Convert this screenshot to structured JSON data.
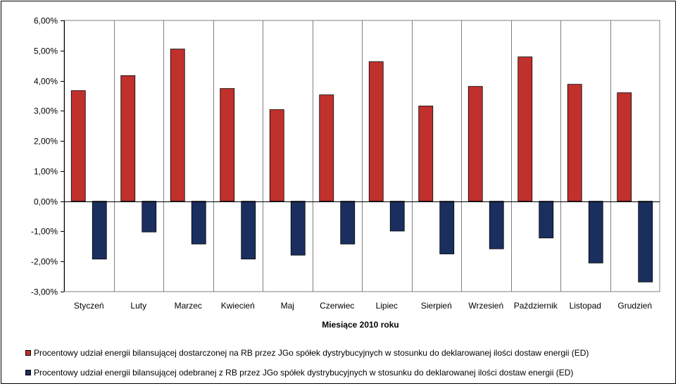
{
  "chart_data": {
    "type": "bar",
    "categories": [
      "Styczeń",
      "Luty",
      "Marzec",
      "Kwiecień",
      "Maj",
      "Czerwiec",
      "Lipiec",
      "Sierpień",
      "Wrzesień",
      "Październik",
      "Listopad",
      "Grudzień"
    ],
    "series": [
      {
        "name": "Procentowy udział energii bilansującej dostarczonej na RB przez JGo spółek dystrybucyjnych w stosunku do deklarowanej ilości dostaw energii (ED)",
        "color": "#c0302c",
        "values": [
          3.67,
          4.17,
          5.05,
          3.74,
          3.04,
          3.53,
          4.63,
          3.16,
          3.81,
          4.79,
          3.88,
          3.6
        ]
      },
      {
        "name": "Procentowy udział energii bilansującej odebranej z RB przez JGo spółek dystrybucyjnych w stosunku do deklarowanej ilości dostaw energii (ED)",
        "color": "#1a2f5e",
        "values": [
          -1.92,
          -1.02,
          -1.42,
          -1.92,
          -1.79,
          -1.42,
          -0.99,
          -1.75,
          -1.58,
          -1.22,
          -2.05,
          -2.68
        ]
      }
    ],
    "ylim": [
      -3,
      6
    ],
    "yticks": [
      "-3,00%",
      "-2,00%",
      "-1,00%",
      "0,00%",
      "1,00%",
      "2,00%",
      "3,00%",
      "4,00%",
      "5,00%",
      "6,00%"
    ],
    "xlabel": "Miesiące 2010  roku",
    "ylabel": "",
    "grid": "vertical",
    "legend_position": "bottom"
  }
}
